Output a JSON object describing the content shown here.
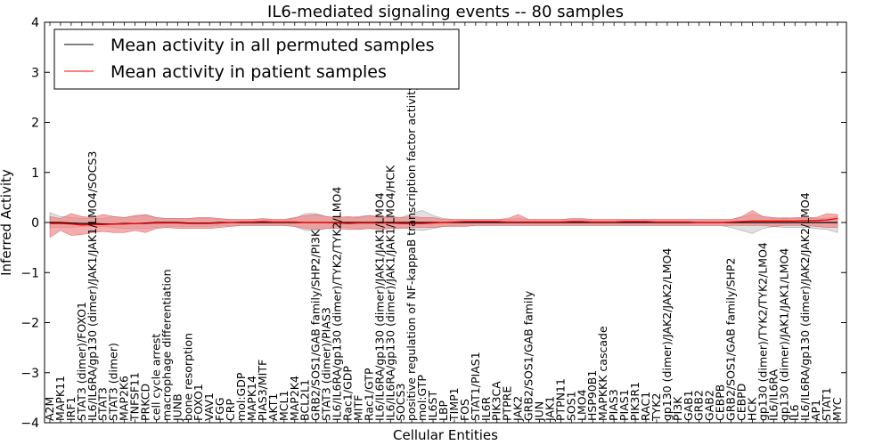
{
  "chart_data": {
    "type": "line",
    "title": "IL6-mediated signaling events -- 80 samples",
    "xlabel": "Cellular Entities",
    "ylabel": "Inferred Activity",
    "ylim": [
      -4,
      4
    ],
    "yticks": [
      -4,
      -3,
      -2,
      -1,
      0,
      1,
      2,
      3,
      4
    ],
    "ytick_labels": [
      "−4",
      "−3",
      "−2",
      "−1",
      "0",
      "1",
      "2",
      "3",
      "4"
    ],
    "grid": false,
    "legend_position": "top-left",
    "legend": [
      "Mean activity in all permuted samples",
      "Mean activity in patient samples"
    ],
    "series_colors": {
      "permuted": "#000000",
      "patient": "#ff0000"
    },
    "band_colors": {
      "permuted": "#bbbbbb",
      "patient": "#f08080"
    },
    "categories": [
      "A2M",
      "MAPK11",
      "IRF1",
      "STAT3 (dimer)/FOXO1",
      "IL6/IL6RA/gp130 (dimer)/JAK1/JAK1/LMO4/SOCS3",
      "STAT3",
      "STAT3 (dimer)",
      "MAP2K6",
      "TNFSF11",
      "PRKCD",
      "cell cycle arrest",
      "macrophage differentiation",
      "JUNB",
      "bone resorption",
      "FOXO1",
      "VAV1",
      "FGG",
      "CRP",
      "mol:GDP",
      "MAPK14",
      "PIAS3/MITF",
      "AKT1",
      "MCL1",
      "MAP2K4",
      "BCL2L1",
      "GRB2/SOS1/GAB family/SHP2/PI3K",
      "STAT3 (dimer)/PIAS3",
      "IL6/IL6RA/gp130 (dimer)/TYK2/TYK2/LMO4",
      "Rac1/GDP",
      "MITF",
      "Rac1/GTP",
      "IL6/IL6RA/gp130 (dimer)/JAK1/JAK1/LMO4",
      "IL6/IL6RA/gp130 (dimer)/JAK1/JAK1/LMO4/HCK",
      "SOCS3",
      "positive regulation of NF-kappaB transcription factor activity",
      "mol:GTP",
      "IL6ST",
      "LBP",
      "TIMP1",
      "FOS",
      "STAT1/PIAS1",
      "IL6R",
      "PIK3CA",
      "PTPRE",
      "JAK2",
      "GRB2/SOS1/GAB family",
      "JUN",
      "JAK1",
      "PTPN11",
      "SOS1",
      "LMO4",
      "HSP90B1",
      "MAPKKK cascade",
      "PIAS3",
      "PIAS1",
      "PIK3R1",
      "RAC1",
      "TYK2",
      "gp130 (dimer)/JAK2/JAK2/LMO4",
      "PI3K",
      "GAB1",
      "GRB2",
      "GAB2",
      "CEBPB",
      "GRB2/SOS1/GAB family/SHP2",
      "CEBPD",
      "HCK",
      "gp130 (dimer)/TYK2/TYK2/LMO4",
      "IL6/IL6RA",
      "gp130 (dimer)/JAK1/JAK1/LMO4",
      "IL6",
      "IL6/IL6RA/gp130 (dimer)/JAK2/JAK2/LMO4",
      "AP1",
      "STAT1",
      "MYC"
    ],
    "series": [
      {
        "name": "Mean activity in all permuted samples",
        "values": [
          0,
          0,
          -0.01,
          -0.02,
          -0.02,
          -0.03,
          -0.03,
          -0.02,
          -0.02,
          -0.01,
          0,
          0,
          0,
          -0.01,
          -0.01,
          -0.01,
          0,
          0,
          0,
          0,
          0,
          0,
          0,
          0,
          0,
          0,
          0,
          0,
          0,
          0,
          0,
          0,
          0,
          0,
          0,
          0,
          0,
          0,
          0,
          0,
          0,
          0,
          0,
          0,
          0,
          0,
          0,
          0,
          0,
          0,
          0,
          0,
          0,
          0,
          0,
          0,
          0,
          0,
          0,
          0,
          0,
          0,
          0,
          0,
          0,
          0,
          0,
          0,
          0,
          0,
          0,
          0,
          0,
          0,
          0
        ]
      },
      {
        "name": "Mean activity in patient samples",
        "values": [
          -0.02,
          -0.02,
          -0.03,
          -0.05,
          -0.04,
          -0.04,
          -0.03,
          -0.03,
          -0.02,
          -0.02,
          -0.01,
          -0.01,
          -0.01,
          -0.02,
          -0.02,
          -0.02,
          -0.01,
          0,
          0.01,
          0.01,
          0.02,
          0.01,
          0.01,
          0.01,
          0,
          0,
          0,
          -0.01,
          -0.02,
          -0.01,
          -0.01,
          -0.01,
          -0.01,
          -0.02,
          -0.02,
          -0.02,
          -0.01,
          0,
          0.01,
          0.02,
          0.02,
          0.02,
          0.02,
          0.01,
          0.01,
          0.01,
          0.01,
          0.01,
          0.01,
          0.02,
          0.02,
          0.01,
          0.01,
          0.01,
          0.02,
          0.02,
          0.02,
          0.01,
          0.01,
          0.01,
          0.01,
          0,
          0,
          0,
          0.01,
          0.02,
          0.03,
          0.03,
          0.03,
          0.03,
          0.03,
          0.04,
          0.04,
          0.05,
          0.08
        ]
      }
    ],
    "bands": {
      "permuted_upper": [
        0.2,
        0.12,
        0.1,
        0.08,
        0.08,
        0.08,
        0.12,
        0.1,
        0.12,
        0.14,
        0.1,
        0.08,
        0.08,
        0.08,
        0.08,
        0.08,
        0.06,
        0.06,
        0.06,
        0.06,
        0.06,
        0.06,
        0.06,
        0.08,
        0.18,
        0.18,
        0.12,
        0.08,
        0.1,
        0.12,
        0.14,
        0.12,
        0.12,
        0.1,
        0.18,
        0.24,
        0.14,
        0.08,
        0.06,
        0.06,
        0.06,
        0.06,
        0.06,
        0.06,
        0.08,
        0.06,
        0.06,
        0.06,
        0.06,
        0.06,
        0.06,
        0.06,
        0.06,
        0.06,
        0.06,
        0.06,
        0.06,
        0.06,
        0.06,
        0.06,
        0.06,
        0.06,
        0.06,
        0.06,
        0.06,
        0.1,
        0.16,
        0.12,
        0.08,
        0.1,
        0.08,
        0.08,
        0.08,
        0.08,
        0.12
      ],
      "permuted_lower": [
        -0.1,
        -0.1,
        -0.1,
        -0.08,
        -0.08,
        -0.08,
        -0.1,
        -0.12,
        -0.12,
        -0.12,
        -0.1,
        -0.08,
        -0.08,
        -0.08,
        -0.08,
        -0.08,
        -0.06,
        -0.06,
        -0.06,
        -0.06,
        -0.06,
        -0.06,
        -0.06,
        -0.08,
        -0.16,
        -0.16,
        -0.12,
        -0.08,
        -0.1,
        -0.12,
        -0.12,
        -0.12,
        -0.12,
        -0.1,
        -0.14,
        -0.16,
        -0.12,
        -0.08,
        -0.06,
        -0.06,
        -0.06,
        -0.06,
        -0.06,
        -0.06,
        -0.06,
        -0.06,
        -0.06,
        -0.06,
        -0.06,
        -0.06,
        -0.06,
        -0.06,
        -0.06,
        -0.06,
        -0.06,
        -0.06,
        -0.06,
        -0.06,
        -0.06,
        -0.06,
        -0.06,
        -0.06,
        -0.06,
        -0.06,
        -0.1,
        -0.16,
        -0.22,
        -0.12,
        -0.08,
        -0.1,
        -0.1,
        -0.1,
        -0.12,
        -0.14,
        -0.2
      ],
      "patient_upper": [
        0.12,
        0.08,
        0.18,
        0.12,
        0.1,
        0.16,
        0.12,
        0.1,
        0.14,
        0.16,
        0.1,
        0.08,
        0.08,
        0.08,
        0.1,
        0.1,
        0.08,
        0.06,
        0.06,
        0.06,
        0.08,
        0.06,
        0.06,
        0.1,
        0.14,
        0.16,
        0.12,
        0.1,
        0.12,
        0.1,
        0.14,
        0.1,
        0.1,
        0.1,
        0.12,
        0.1,
        0.1,
        0.06,
        0.06,
        0.06,
        0.06,
        0.06,
        0.06,
        0.08,
        0.16,
        0.06,
        0.06,
        0.06,
        0.06,
        0.08,
        0.08,
        0.06,
        0.06,
        0.06,
        0.06,
        0.06,
        0.06,
        0.06,
        0.06,
        0.06,
        0.06,
        0.06,
        0.06,
        0.06,
        0.06,
        0.12,
        0.24,
        0.12,
        0.1,
        0.08,
        0.1,
        0.1,
        0.1,
        0.18,
        0.16
      ],
      "patient_lower": [
        -0.3,
        -0.16,
        -0.26,
        -0.24,
        -0.2,
        -0.18,
        -0.2,
        -0.2,
        -0.16,
        -0.2,
        -0.12,
        -0.1,
        -0.12,
        -0.12,
        -0.12,
        -0.12,
        -0.1,
        -0.08,
        -0.06,
        -0.06,
        -0.06,
        -0.06,
        -0.06,
        -0.08,
        -0.12,
        -0.14,
        -0.12,
        -0.12,
        -0.14,
        -0.14,
        -0.12,
        -0.14,
        -0.12,
        -0.12,
        -0.1,
        -0.1,
        -0.1,
        -0.08,
        -0.08,
        -0.08,
        -0.06,
        -0.06,
        -0.06,
        -0.06,
        -0.06,
        -0.06,
        -0.06,
        -0.06,
        -0.06,
        -0.06,
        -0.06,
        -0.06,
        -0.06,
        -0.06,
        -0.06,
        -0.06,
        -0.06,
        -0.06,
        -0.06,
        -0.06,
        -0.06,
        -0.06,
        -0.06,
        -0.06,
        -0.06,
        -0.06,
        -0.06,
        -0.06,
        -0.08,
        -0.06,
        -0.06,
        -0.06,
        -0.08,
        -0.1,
        -0.1
      ]
    }
  }
}
